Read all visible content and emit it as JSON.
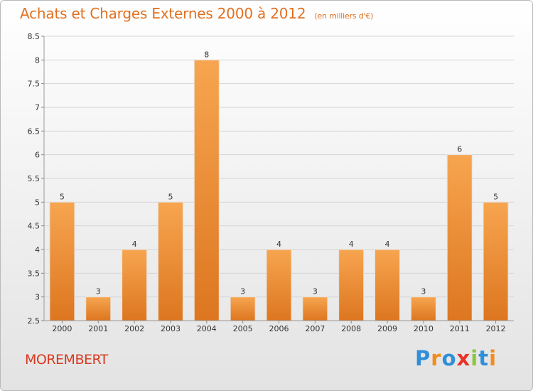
{
  "title": "Achats et Charges Externes 2000 à 2012",
  "subtitle": "(en milliers d'€)",
  "location": "MOREMBERT",
  "logo": {
    "text": "Proxiti",
    "letters": [
      {
        "ch": "P",
        "color": "#2f8fd8"
      },
      {
        "ch": "r",
        "color": "#f28c1e"
      },
      {
        "ch": "o",
        "color": "#2f8fd8"
      },
      {
        "ch": "x",
        "color": "#e8332a"
      },
      {
        "ch": "i",
        "color": "#8cc63f"
      },
      {
        "ch": "t",
        "color": "#2f8fd8"
      },
      {
        "ch": "i",
        "color": "#f28c1e"
      }
    ]
  },
  "colors": {
    "title": "#e07020",
    "bar_top": "#f7a550",
    "bar_bottom": "#dd7620",
    "grid": "#d4d4d4",
    "axis_text": "#333333"
  },
  "chart_data": {
    "type": "bar",
    "title": "Achats et Charges Externes 2000 à 2012",
    "subtitle": "(en milliers d'€)",
    "categories": [
      "2000",
      "2001",
      "2002",
      "2003",
      "2004",
      "2005",
      "2006",
      "2007",
      "2008",
      "2009",
      "2010",
      "2011",
      "2012"
    ],
    "values": [
      5,
      3,
      4,
      5,
      8,
      3,
      4,
      3,
      4,
      4,
      3,
      6,
      5
    ],
    "data_labels": [
      "5",
      "3",
      "4",
      "5",
      "8",
      "3",
      "4",
      "3",
      "4",
      "4",
      "3",
      "6",
      "5"
    ],
    "ylim": [
      2.5,
      8.5
    ],
    "yticks": [
      "2.5",
      "3",
      "3.5",
      "4",
      "4.5",
      "5",
      "5.5",
      "6",
      "6.5",
      "7",
      "7.5",
      "8",
      "8.5"
    ],
    "grid": true,
    "legend": "none",
    "xlabel": "",
    "ylabel": ""
  }
}
